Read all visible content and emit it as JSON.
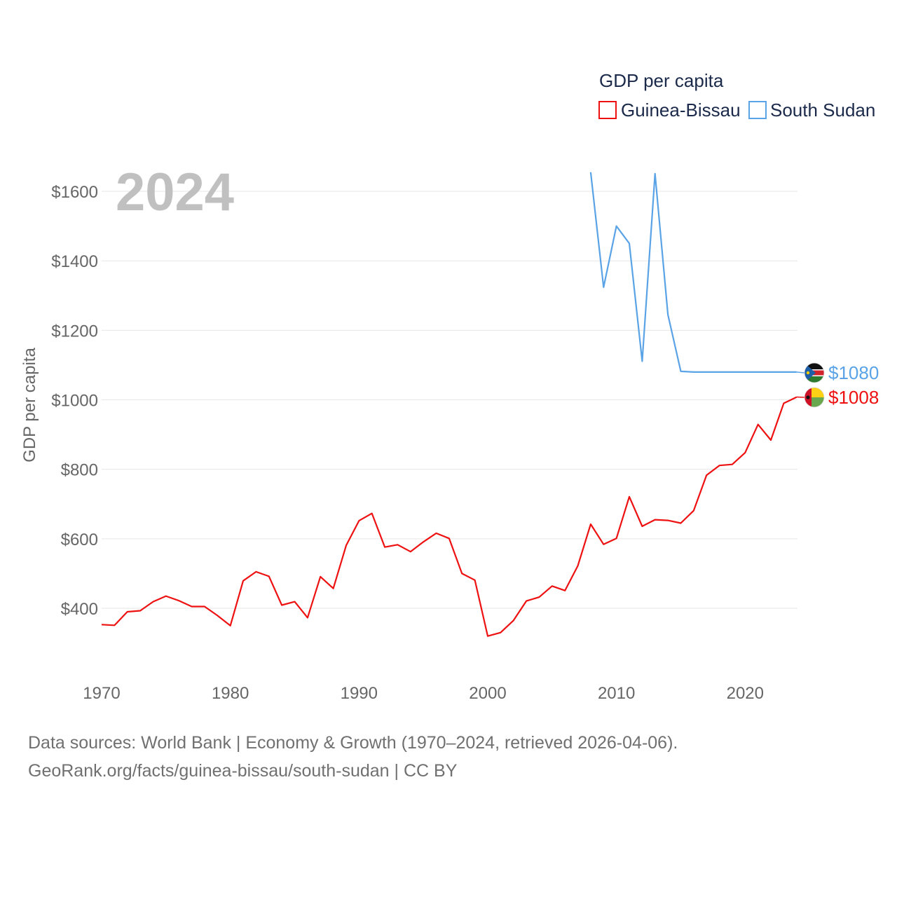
{
  "chart_data": {
    "type": "line",
    "title": "",
    "legend_title": "GDP per capita",
    "current_year_label": "2024",
    "xlabel": "",
    "ylabel": "GDP per capita",
    "x_ticks": [
      1970,
      1980,
      1990,
      2000,
      2010,
      2020
    ],
    "x_tick_labels": [
      "1970",
      "1980",
      "1990",
      "2000",
      "2010",
      "2020"
    ],
    "y_ticks": [
      400,
      600,
      800,
      1000,
      1200,
      1400,
      1600
    ],
    "y_tick_labels": [
      "$400",
      "$600",
      "$800",
      "$1000",
      "$1200",
      "$1400",
      "$1600"
    ],
    "xlim": [
      1970,
      2024
    ],
    "ylim": [
      260,
      1660
    ],
    "grid": true,
    "legend_position": "top-right",
    "series": [
      {
        "name": "Guinea-Bissau",
        "color": "#ee1111",
        "end_label": "$1008",
        "flag": "guinea-bissau-flag-icon",
        "x": [
          1970,
          1971,
          1972,
          1973,
          1974,
          1975,
          1976,
          1977,
          1978,
          1979,
          1980,
          1981,
          1982,
          1983,
          1984,
          1985,
          1986,
          1987,
          1988,
          1989,
          1990,
          1991,
          1992,
          1993,
          1994,
          1995,
          1996,
          1997,
          1998,
          1999,
          2000,
          2001,
          2002,
          2003,
          2004,
          2005,
          2006,
          2007,
          2008,
          2009,
          2010,
          2011,
          2012,
          2013,
          2014,
          2015,
          2016,
          2017,
          2018,
          2019,
          2020,
          2021,
          2022,
          2023,
          2024
        ],
        "values": [
          353,
          351,
          390,
          393,
          419,
          435,
          422,
          405,
          405,
          379,
          350,
          479,
          505,
          492,
          409,
          419,
          373,
          491,
          457,
          581,
          652,
          673,
          576,
          583,
          563,
          591,
          616,
          601,
          500,
          481,
          320,
          330,
          365,
          421,
          432,
          464,
          451,
          522,
          642,
          584,
          601,
          721,
          636,
          655,
          653,
          645,
          681,
          783,
          811,
          814,
          848,
          929,
          884,
          990,
          1008
        ]
      },
      {
        "name": "South Sudan",
        "color": "#5aa3e6",
        "end_label": "$1080",
        "flag": "south-sudan-flag-icon",
        "x": [
          2008,
          2009,
          2010,
          2011,
          2012,
          2013,
          2014,
          2015,
          2016,
          2017,
          2018,
          2019,
          2020,
          2021,
          2022,
          2023,
          2024
        ],
        "values": [
          1655,
          1324,
          1500,
          1450,
          1111,
          1651,
          1245,
          1082,
          1080,
          1080,
          1080,
          1080,
          1080,
          1080,
          1080,
          1080,
          1080
        ]
      }
    ]
  },
  "footer": {
    "line1": "Data sources: World Bank | Economy & Growth (1970–2024, retrieved 2026-04-06).",
    "line2": "GeoRank.org/facts/guinea-bissau/south-sudan | CC BY"
  }
}
